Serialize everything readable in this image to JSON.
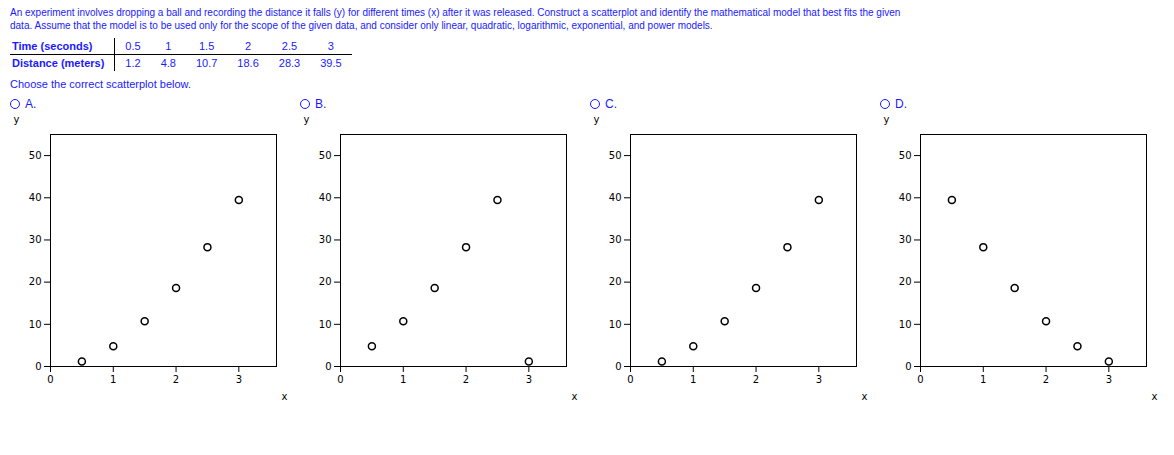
{
  "title": "An experiment involves dropping a ball and recording the distance it falls (y) for different times  (x) after it was released. Construct a scatterplot and identify the mathematical model that best fits the given",
  "subtitle": "data. Assume that the model is to be used only for the scope of the given data, and consider only linear, quadratic, logarithmic, exponential, and power models.",
  "color": "#1a1aff",
  "table": {
    "x_label": "Time (seconds)",
    "x": [
      0.5,
      1,
      1.5,
      2,
      2.5,
      3
    ],
    "y_label": "Distance (meters)",
    "y": [
      1.2,
      4.8,
      10.7,
      18.6,
      28.3,
      39.5
    ]
  },
  "annotations": [
    "Choose the correct scatterplot below."
  ],
  "chart_data": [
    {
      "type": "scatter",
      "title": "A.",
      "x_label": "x",
      "y_label": "y",
      "x": [
        0.5,
        1.0,
        1.5,
        2.0,
        2.5,
        3.0
      ],
      "values": [
        1.2,
        4.8,
        10.7,
        18.6,
        28.3,
        39.5
      ],
      "xlim": [
        0,
        3.6
      ],
      "ylim": [
        0,
        55
      ],
      "xticks": [
        0,
        1,
        2,
        3
      ],
      "yticks": [
        0,
        10,
        20,
        30,
        40,
        50
      ],
      "color": "#000000",
      "marker": "circle",
      "grid": false
    },
    {
      "type": "scatter",
      "title": "B.",
      "x_label": "x",
      "y_label": "y",
      "x": [
        0.5,
        1.0,
        1.5,
        2.0,
        2.5,
        3.0
      ],
      "values": [
        4.8,
        10.7,
        18.6,
        28.3,
        39.5,
        1.2
      ],
      "xlim": [
        0,
        3.6
      ],
      "ylim": [
        0,
        55
      ],
      "xticks": [
        0,
        1,
        2,
        3
      ],
      "yticks": [
        0,
        10,
        20,
        30,
        40,
        50
      ],
      "color": "#000000",
      "marker": "circle",
      "grid": false
    },
    {
      "type": "scatter",
      "title": "C.",
      "x_label": "x",
      "y_label": "y",
      "x": [
        0.5,
        1.0,
        1.5,
        2.0,
        2.5,
        3.0
      ],
      "values": [
        1.2,
        4.8,
        10.7,
        18.6,
        28.3,
        39.5
      ],
      "xlim": [
        0,
        3.6
      ],
      "ylim": [
        0,
        55
      ],
      "xticks": [
        0,
        1,
        2,
        3
      ],
      "yticks": [
        0,
        10,
        20,
        30,
        40,
        50
      ],
      "color": "#000000",
      "marker": "circle",
      "grid": false
    },
    {
      "type": "scatter",
      "title": "D.",
      "x_label": "x",
      "y_label": "y",
      "x": [
        0.5,
        1.0,
        1.5,
        2.0,
        2.5,
        3.0
      ],
      "values": [
        39.5,
        28.3,
        18.6,
        10.7,
        4.8,
        1.2
      ],
      "xlim": [
        0,
        3.6
      ],
      "ylim": [
        0,
        55
      ],
      "xticks": [
        0,
        1,
        2,
        3
      ],
      "yticks": [
        0,
        10,
        20,
        30,
        40,
        50
      ],
      "color": "#000000",
      "marker": "circle",
      "grid": false
    }
  ]
}
